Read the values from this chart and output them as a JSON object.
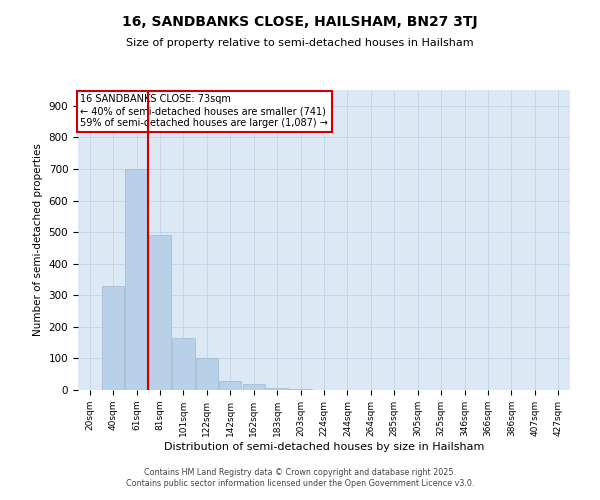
{
  "title": "16, SANDBANKS CLOSE, HAILSHAM, BN27 3TJ",
  "subtitle": "Size of property relative to semi-detached houses in Hailsham",
  "xlabel": "Distribution of semi-detached houses by size in Hailsham",
  "ylabel": "Number of semi-detached properties",
  "annotation_line1": "16 SANDBANKS CLOSE: 73sqm",
  "annotation_line2": "← 40% of semi-detached houses are smaller (741)",
  "annotation_line3": "59% of semi-detached houses are larger (1,087) →",
  "bins": [
    "20sqm",
    "40sqm",
    "61sqm",
    "81sqm",
    "101sqm",
    "122sqm",
    "142sqm",
    "162sqm",
    "183sqm",
    "203sqm",
    "224sqm",
    "244sqm",
    "264sqm",
    "285sqm",
    "305sqm",
    "325sqm",
    "346sqm",
    "366sqm",
    "386sqm",
    "407sqm",
    "427sqm"
  ],
  "values": [
    0,
    330,
    700,
    490,
    165,
    100,
    30,
    18,
    5,
    2,
    1,
    0,
    0,
    0,
    0,
    0,
    0,
    0,
    0,
    0,
    0
  ],
  "bar_color": "#b8d0e8",
  "bar_edge_color": "#a0b8d0",
  "vline_color": "#cc0000",
  "vline_x": 2.5,
  "annotation_box_edge_color": "#cc0000",
  "background_color": "#ffffff",
  "axes_bg_color": "#dce9f5",
  "grid_color": "#c0d4e8",
  "ylim": [
    0,
    950
  ],
  "yticks": [
    0,
    100,
    200,
    300,
    400,
    500,
    600,
    700,
    800,
    900
  ],
  "footer_line1": "Contains HM Land Registry data © Crown copyright and database right 2025.",
  "footer_line2": "Contains public sector information licensed under the Open Government Licence v3.0."
}
